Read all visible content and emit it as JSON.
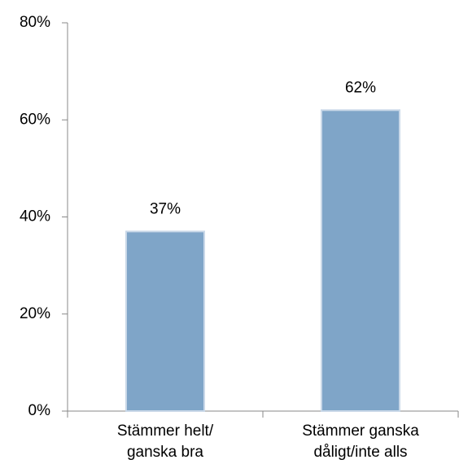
{
  "chart_data": {
    "type": "bar",
    "categories": [
      "Stämmer helt/\nganska bra",
      "Stämmer ganska\ndåligt/inte alls"
    ],
    "values": [
      37,
      62
    ],
    "value_labels": [
      "37%",
      "62%"
    ],
    "color": "#7fa5c8",
    "ylim": [
      0,
      80
    ],
    "yticks": [
      {
        "value": 0,
        "label": "0%"
      },
      {
        "value": 20,
        "label": "20%"
      },
      {
        "value": 40,
        "label": "40%"
      },
      {
        "value": 60,
        "label": "60%"
      },
      {
        "value": 80,
        "label": "80%"
      }
    ],
    "grid": false
  }
}
